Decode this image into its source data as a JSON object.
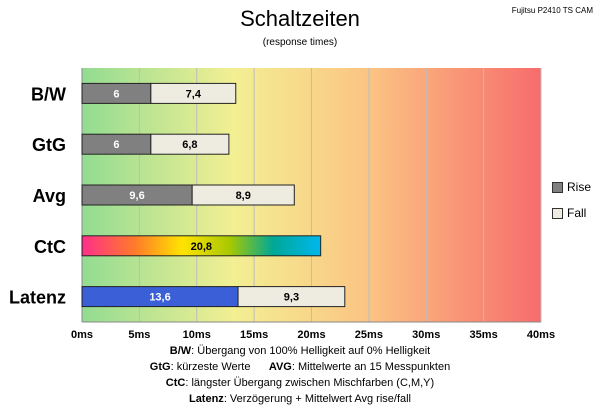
{
  "corner_label": "Fujitsu P2410 TS CAM",
  "chart_data": {
    "type": "bar",
    "orientation": "horizontal",
    "title": "Schaltzeiten",
    "subtitle": "(response times)",
    "categories": [
      "B/W",
      "GtG",
      "Avg",
      "CtC",
      "Latenz"
    ],
    "series": [
      {
        "name": "Rise",
        "values": [
          6,
          6,
          9.6,
          20.8,
          13.6
        ],
        "labels": [
          "6",
          "6",
          "9,6",
          "20,8",
          "13,6"
        ]
      },
      {
        "name": "Fall",
        "values": [
          7.4,
          6.8,
          8.9,
          null,
          9.3
        ],
        "labels": [
          "7,4",
          "6,8",
          "8,9",
          "",
          "9,3"
        ]
      }
    ],
    "stacked": true,
    "xlim": [
      0,
      40
    ],
    "xticks": [
      "0ms",
      "5ms",
      "10ms",
      "15ms",
      "20ms",
      "25ms",
      "30ms",
      "35ms",
      "40ms"
    ],
    "grid": true,
    "legend_position": "right",
    "colors": {
      "rise_default": "#808080",
      "fall": "#eeece1",
      "latency_rise": "#3a5fd6",
      "background_start": "#92dc92",
      "background_end": "#f76c6c"
    }
  },
  "legend": [
    {
      "label": "Rise",
      "color": "#808080"
    },
    {
      "label": "Fall",
      "color": "#eeece1"
    }
  ],
  "caption": {
    "line1": {
      "key": "B/W",
      "text": ":  Übergang von 100% Helligkeit auf 0% Helligkeit"
    },
    "line2": {
      "key": "GtG",
      "text": ": kürzeste  Werte",
      "key2": "AVG",
      "text2": ": Mittelwerte  an 15 Messpunkten"
    },
    "line3": {
      "key": "CtC",
      "text": ": längster Übergang  zwischen Mischfarben (C,M,Y)"
    },
    "line4": {
      "key": "Latenz",
      "text": ": Verzögerung  + Mittelwert  Avg rise/fall"
    }
  }
}
